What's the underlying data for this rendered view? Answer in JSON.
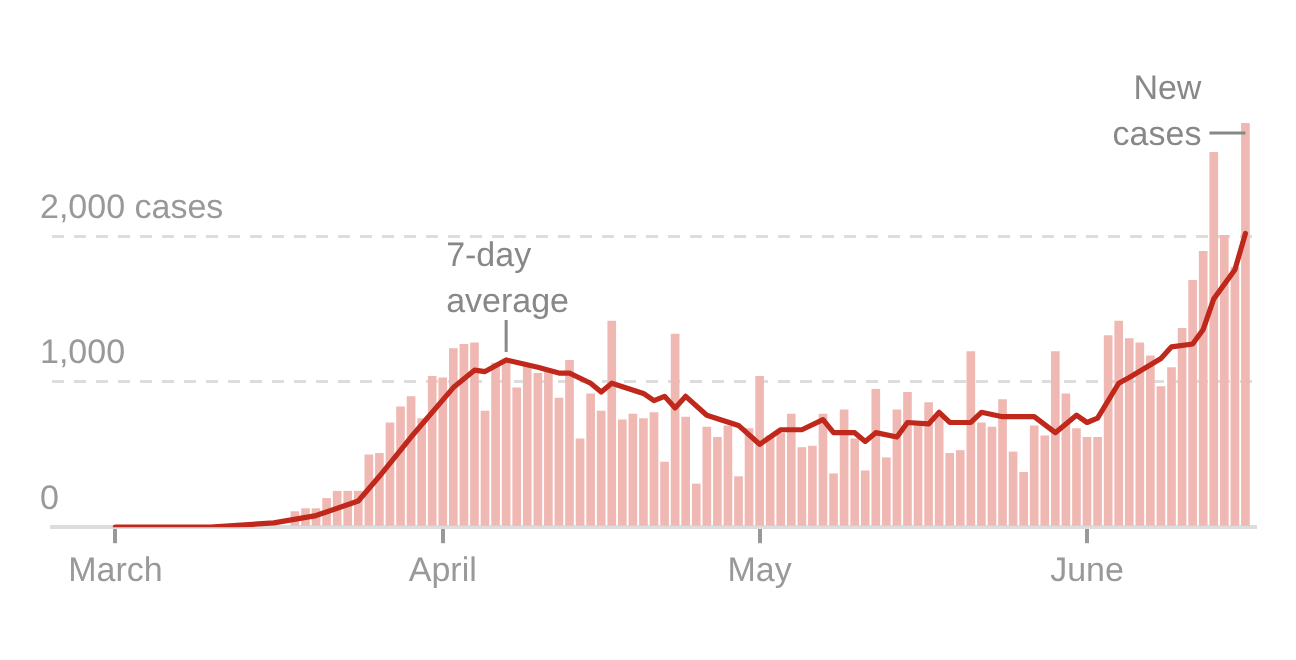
{
  "chart_data": {
    "type": "bar",
    "xlim": [
      "--02-23",
      "--06-17"
    ],
    "xticks": [
      {
        "value": "--03-01",
        "label": "March"
      },
      {
        "value": "--04-01",
        "label": "April"
      },
      {
        "value": "--05-01",
        "label": "May"
      },
      {
        "value": "--06-01",
        "label": "June"
      }
    ],
    "ylim": [
      0,
      2800
    ],
    "yticks": [
      {
        "value": 0,
        "label": "0"
      },
      {
        "value": 1000,
        "label": "1,000"
      },
      {
        "value": 2000,
        "label": "2,000 cases"
      }
    ],
    "grid": "y",
    "legend": false,
    "annotations": [
      {
        "text": "7-day average",
        "x": "--04-07",
        "y": 1150
      },
      {
        "text": "New cases",
        "x": "--06-16",
        "y": 2780
      }
    ],
    "series": [
      {
        "color": "#f0b8b3",
        "x": [
          "--03-01",
          "--03-02",
          "--03-03",
          "--03-04",
          "--03-05",
          "--03-06",
          "--03-07",
          "--03-08",
          "--03-09",
          "--03-10",
          "--03-11",
          "--03-12",
          "--03-13",
          "--03-14",
          "--03-15",
          "--03-16",
          "--03-17",
          "--03-18",
          "--03-19",
          "--03-20",
          "--03-21",
          "--03-22",
          "--03-23",
          "--03-24",
          "--03-25",
          "--03-26",
          "--03-27",
          "--03-28",
          "--03-29",
          "--03-30",
          "--03-31",
          "--04-01",
          "--04-02",
          "--04-03",
          "--04-04",
          "--04-05",
          "--04-06",
          "--04-07",
          "--04-08",
          "--04-09",
          "--04-10",
          "--04-11",
          "--04-12",
          "--04-13",
          "--04-14",
          "--04-15",
          "--04-16",
          "--04-17",
          "--04-18",
          "--04-19",
          "--04-20",
          "--04-21",
          "--04-22",
          "--04-23",
          "--04-24",
          "--04-25",
          "--04-26",
          "--04-27",
          "--04-28",
          "--04-29",
          "--04-30",
          "--05-01",
          "--05-02",
          "--05-03",
          "--05-04",
          "--05-05",
          "--05-06",
          "--05-07",
          "--05-08",
          "--05-09",
          "--05-10",
          "--05-11",
          "--05-12",
          "--05-13",
          "--05-14",
          "--05-15",
          "--05-16",
          "--05-17",
          "--05-18",
          "--05-19",
          "--05-20",
          "--05-21",
          "--05-22",
          "--05-23",
          "--05-24",
          "--05-25",
          "--05-26",
          "--05-27",
          "--05-28",
          "--05-29",
          "--05-30",
          "--05-31",
          "--06-01",
          "--06-02",
          "--06-03",
          "--06-04",
          "--06-05",
          "--06-06",
          "--06-07",
          "--06-08",
          "--06-09",
          "--06-10",
          "--06-11",
          "--06-12",
          "--06-13",
          "--06-14",
          "--06-15",
          "--06-16"
        ],
        "values": [
          0,
          0,
          0,
          0,
          0,
          0,
          0,
          0,
          0,
          0,
          0,
          10,
          10,
          20,
          null,
          null,
          null,
          110,
          130,
          130,
          200,
          250,
          250,
          250,
          500,
          510,
          720,
          830,
          900,
          750,
          1040,
          1030,
          1230,
          1260,
          1270,
          800,
          1130,
          1140,
          960,
          1110,
          1060,
          1070,
          890,
          1150,
          610,
          920,
          800,
          1420,
          740,
          780,
          750,
          790,
          450,
          1330,
          760,
          300,
          690,
          620,
          700,
          350,
          680,
          1040,
          630,
          650,
          780,
          550,
          560,
          780,
          370,
          810,
          610,
          390,
          950,
          480,
          810,
          930,
          730,
          860,
          770,
          510,
          530,
          1210,
          720,
          690,
          880,
          520,
          380,
          700,
          630,
          1210,
          920,
          680,
          620,
          620,
          1320,
          1420,
          1300,
          1270,
          1180,
          970,
          1100,
          1370,
          1700,
          1900,
          2580,
          2010,
          1790,
          2780
        ]
      },
      {
        "type": "line",
        "color": "#c0281c",
        "x": [
          "--03-01",
          "--03-10",
          "--03-16",
          "--03-20",
          "--03-24",
          "--03-26",
          "--03-29",
          "--04-02",
          "--04-04",
          "--04-05",
          "--04-07",
          "--04-10",
          "--04-12",
          "--04-13",
          "--04-15",
          "--04-16",
          "--04-17",
          "--04-20",
          "--04-21",
          "--04-22",
          "--04-23",
          "--04-24",
          "--04-26",
          "--04-29",
          "--05-01",
          "--05-03",
          "--05-05",
          "--05-07",
          "--05-08",
          "--05-10",
          "--05-11",
          "--05-12",
          "--05-14",
          "--05-15",
          "--05-17",
          "--05-18",
          "--05-19",
          "--05-21",
          "--05-22",
          "--05-24",
          "--05-27",
          "--05-29",
          "--05-31",
          "--06-01",
          "--06-02",
          "--06-04",
          "--06-05",
          "--06-08",
          "--06-09",
          "--06-11",
          "--06-12",
          "--06-13",
          "--06-15",
          "--06-16"
        ],
        "values": [
          0,
          0,
          30,
          80,
          180,
          350,
          620,
          960,
          1080,
          1070,
          1150,
          1100,
          1060,
          1060,
          990,
          930,
          990,
          920,
          870,
          900,
          820,
          900,
          770,
          700,
          570,
          670,
          670,
          740,
          650,
          650,
          590,
          650,
          620,
          720,
          710,
          790,
          720,
          720,
          790,
          760,
          760,
          650,
          770,
          720,
          750,
          990,
          1030,
          1160,
          1240,
          1260,
          1360,
          1570,
          1770,
          2020
        ]
      }
    ]
  }
}
